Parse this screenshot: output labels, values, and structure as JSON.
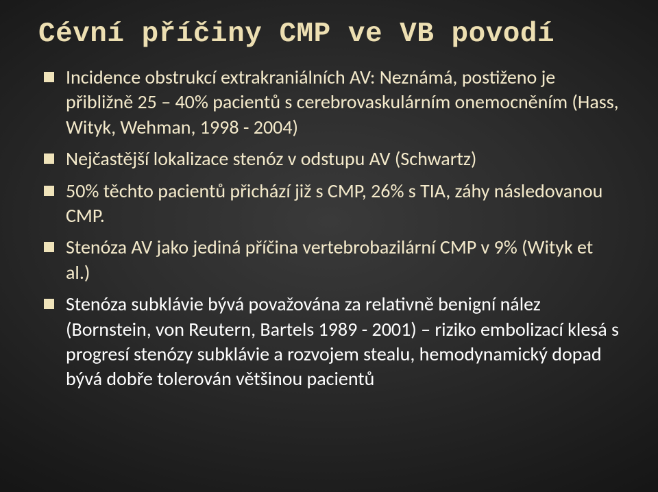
{
  "slide": {
    "title": "Cévní příčiny CMP ve VB povodí",
    "title_fontsize": 41,
    "title_color": "#eddfb2",
    "body_fontsize": 28,
    "body_color": "#f4eacb",
    "accent_color": "#ffffff",
    "background": {
      "type": "radial-gradient",
      "center_color": "#3a3a3a",
      "edge_color": "#040404"
    },
    "bullets": [
      {
        "style": "normal",
        "text": "Incidence obstrukcí extrakraniálních AV: Neznámá, postiženo je přibližně 25 – 40% pacientů s cerebrovaskulárním onemocněním (Hass, Wityk, Wehman, 1998 - 2004)"
      },
      {
        "style": "normal",
        "text": "Nejčastější lokalizace stenóz v odstupu AV (Schwartz)"
      },
      {
        "style": "normal",
        "text": "50% těchto pacientů přichází již s CMP, 26% s TIA, záhy následovanou CMP."
      },
      {
        "style": "normal",
        "text": "Stenóza AV jako jediná příčina vertebrobazilární CMP v 9%  (Wityk et al.)"
      },
      {
        "style": "accent",
        "text": "Stenóza subklávie  bývá považována za relativně benigní nález (Bornstein, von Reutern, Bartels 1989 - 2001) – riziko embolizací klesá s progresí stenózy subklávie a rozvojem stealu, hemodynamický dopad bývá dobře tolerován většinou pacientů"
      }
    ]
  }
}
